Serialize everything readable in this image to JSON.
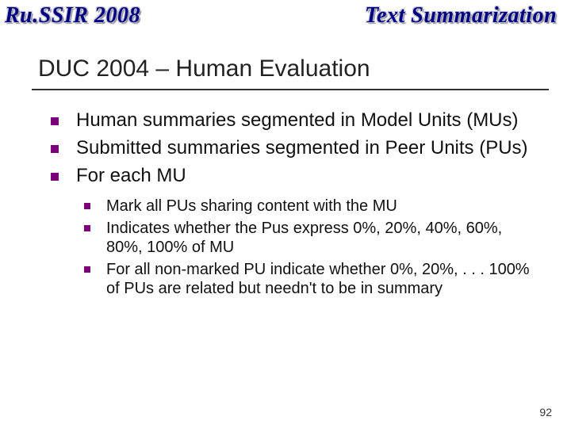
{
  "colors": {
    "header_text": "#000080",
    "bullet": "#7a007a",
    "rule": "#333333",
    "body_text": "#111111",
    "background": "#ffffff"
  },
  "fonts": {
    "header_family": "Times New Roman",
    "header_size_pt": 28,
    "title_size_pt": 30,
    "outer_bullet_size_pt": 24,
    "inner_bullet_size_pt": 20
  },
  "header": {
    "left": "Ru.SSIR 2008",
    "right": "Text Summarization"
  },
  "title": "DUC 2004 – Human Evaluation",
  "bullets": {
    "b1": "Human summaries segmented in Model Units (MUs)",
    "b2": "Submitted summaries segmented in Peer Units (PUs)",
    "b3": "For each MU",
    "sub": {
      "s1": "Mark all PUs sharing content with the MU",
      "s2": "Indicates whether the Pus express 0%, 20%, 40%, 60%, 80%, 100% of MU",
      "s3": "For all non-marked PU indicate whether 0%, 20%, . . . 100% of PUs are related but needn't to be in summary"
    }
  },
  "page_number": "92"
}
